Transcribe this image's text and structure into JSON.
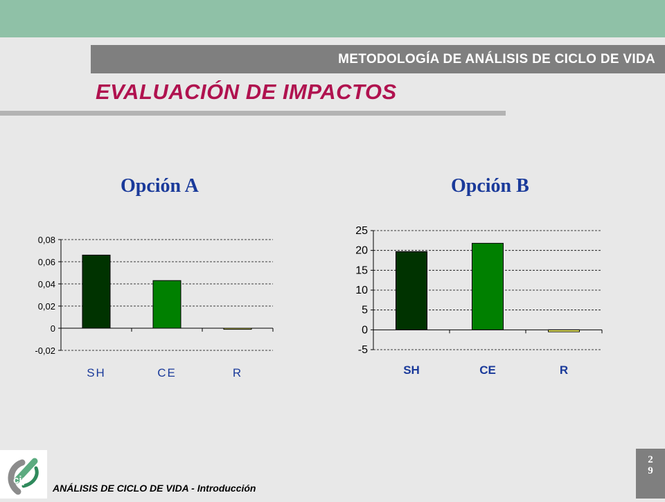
{
  "header": {
    "section": "METODOLOGÍA DE ANÁLISIS DE CICLO DE VIDA",
    "title": "EVALUACIÓN DE IMPACTOS"
  },
  "chart_data": [
    {
      "type": "bar",
      "title": "Opción A",
      "categories": [
        "SH",
        "CE",
        "R"
      ],
      "values": [
        0.066,
        0.043,
        -0.001
      ],
      "ylim": [
        -0.02,
        0.08
      ],
      "yticks": [
        "0,08",
        "0,06",
        "0,04",
        "0,02",
        "0",
        "-0,02"
      ],
      "ytick_values": [
        0.08,
        0.06,
        0.04,
        0.02,
        0,
        -0.02
      ],
      "colors": [
        "#003300",
        "#008000",
        "#ffff66"
      ],
      "grid": true,
      "legend": "none"
    },
    {
      "type": "bar",
      "title": "Opción B",
      "categories": [
        "SH",
        "CE",
        "R"
      ],
      "values": [
        19.7,
        21.8,
        -0.5
      ],
      "ylim": [
        -5,
        25
      ],
      "yticks": [
        "25",
        "20",
        "15",
        "10",
        "5",
        "0",
        "-5"
      ],
      "ytick_values": [
        25,
        20,
        15,
        10,
        5,
        0,
        -5
      ],
      "colors": [
        "#003300",
        "#008000",
        "#ffff66"
      ],
      "grid": true,
      "legend": "none"
    }
  ],
  "footer": {
    "text": "ANÁLISIS DE CICLO DE VIDA - Introducción",
    "page_digit_1": "2",
    "page_digit_2": "9"
  },
  "logo": {
    "icon": "cip-logo-icon",
    "text": "cip"
  }
}
